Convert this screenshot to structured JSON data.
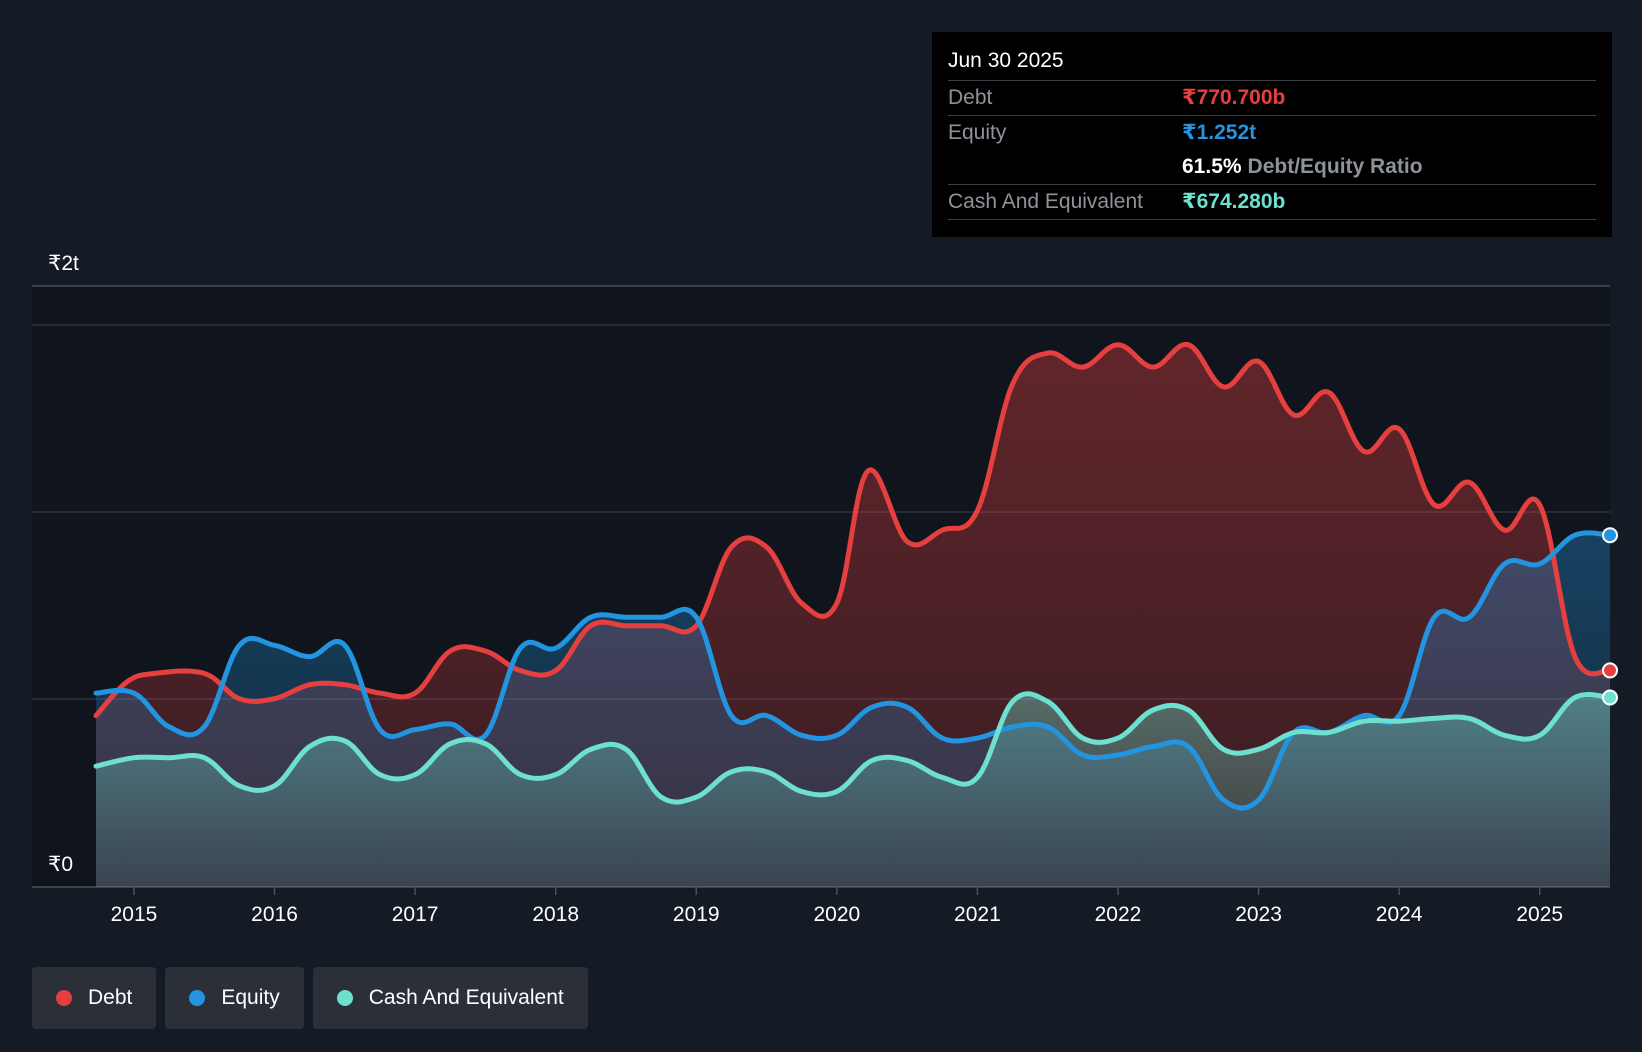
{
  "tooltip": {
    "date": "Jun 30 2025",
    "debt_label": "Debt",
    "debt_value": "₹770.700b",
    "equity_label": "Equity",
    "equity_value": "₹1.252t",
    "ratio_pct": "61.5%",
    "ratio_label": "Debt/Equity Ratio",
    "cash_label": "Cash And Equivalent",
    "cash_value": "₹674.280b"
  },
  "legend": {
    "debt": "Debt",
    "equity": "Equity",
    "cash": "Cash And Equivalent"
  },
  "colors": {
    "debt": "#e5403f",
    "equity": "#2394df",
    "cash": "#6de0cf",
    "background": "#151b24"
  },
  "chart_data": {
    "type": "area",
    "title": "",
    "xlabel": "",
    "ylabel": "",
    "y_top_label": "₹2t",
    "y_bottom_label": "₹0",
    "ylim": [
      0,
      2000
    ],
    "xlim": [
      2014.73,
      2025.5
    ],
    "x_ticks": [
      "2015",
      "2016",
      "2017",
      "2018",
      "2019",
      "2020",
      "2021",
      "2022",
      "2023",
      "2024",
      "2025"
    ],
    "units": "₹ billions",
    "series": [
      {
        "name": "Debt",
        "points": [
          [
            2014.73,
            610
          ],
          [
            2014.95,
            730
          ],
          [
            2015.15,
            760
          ],
          [
            2015.5,
            760
          ],
          [
            2015.75,
            670
          ],
          [
            2016.0,
            670
          ],
          [
            2016.25,
            720
          ],
          [
            2016.5,
            720
          ],
          [
            2016.75,
            690
          ],
          [
            2017.0,
            690
          ],
          [
            2017.25,
            840
          ],
          [
            2017.5,
            840
          ],
          [
            2017.75,
            770
          ],
          [
            2018.0,
            770
          ],
          [
            2018.25,
            930
          ],
          [
            2018.5,
            930
          ],
          [
            2018.75,
            930
          ],
          [
            2019.0,
            930
          ],
          [
            2019.25,
            1210
          ],
          [
            2019.5,
            1210
          ],
          [
            2019.75,
            1010
          ],
          [
            2020.0,
            1010
          ],
          [
            2020.22,
            1480
          ],
          [
            2020.5,
            1230
          ],
          [
            2020.75,
            1270
          ],
          [
            2021.0,
            1340
          ],
          [
            2021.25,
            1790
          ],
          [
            2021.5,
            1900
          ],
          [
            2021.75,
            1850
          ],
          [
            2022.0,
            1930
          ],
          [
            2022.25,
            1850
          ],
          [
            2022.5,
            1930
          ],
          [
            2022.75,
            1780
          ],
          [
            2023.0,
            1870
          ],
          [
            2023.25,
            1680
          ],
          [
            2023.5,
            1760
          ],
          [
            2023.75,
            1550
          ],
          [
            2024.0,
            1630
          ],
          [
            2024.25,
            1360
          ],
          [
            2024.5,
            1440
          ],
          [
            2024.75,
            1270
          ],
          [
            2025.0,
            1360
          ],
          [
            2025.25,
            820
          ],
          [
            2025.5,
            770.7
          ]
        ]
      },
      {
        "name": "Equity",
        "points": [
          [
            2014.73,
            690
          ],
          [
            2015.0,
            690
          ],
          [
            2015.25,
            570
          ],
          [
            2015.5,
            570
          ],
          [
            2015.75,
            860
          ],
          [
            2016.0,
            860
          ],
          [
            2016.25,
            820
          ],
          [
            2016.5,
            860
          ],
          [
            2016.75,
            560
          ],
          [
            2017.0,
            560
          ],
          [
            2017.25,
            580
          ],
          [
            2017.5,
            540
          ],
          [
            2017.75,
            850
          ],
          [
            2018.0,
            850
          ],
          [
            2018.25,
            960
          ],
          [
            2018.5,
            960
          ],
          [
            2018.75,
            960
          ],
          [
            2019.0,
            960
          ],
          [
            2019.25,
            610
          ],
          [
            2019.5,
            610
          ],
          [
            2019.75,
            540
          ],
          [
            2020.0,
            540
          ],
          [
            2020.25,
            640
          ],
          [
            2020.5,
            640
          ],
          [
            2020.75,
            530
          ],
          [
            2021.0,
            530
          ],
          [
            2021.25,
            570
          ],
          [
            2021.5,
            570
          ],
          [
            2021.75,
            470
          ],
          [
            2022.0,
            470
          ],
          [
            2022.25,
            500
          ],
          [
            2022.5,
            500
          ],
          [
            2022.75,
            310
          ],
          [
            2023.0,
            310
          ],
          [
            2023.25,
            550
          ],
          [
            2023.5,
            550
          ],
          [
            2023.75,
            610
          ],
          [
            2024.0,
            610
          ],
          [
            2024.25,
            960
          ],
          [
            2024.5,
            960
          ],
          [
            2024.75,
            1150
          ],
          [
            2025.0,
            1150
          ],
          [
            2025.25,
            1252
          ],
          [
            2025.5,
            1252
          ]
        ]
      },
      {
        "name": "Cash And Equivalent",
        "points": [
          [
            2014.73,
            430
          ],
          [
            2015.0,
            460
          ],
          [
            2015.25,
            460
          ],
          [
            2015.5,
            460
          ],
          [
            2015.75,
            360
          ],
          [
            2016.0,
            360
          ],
          [
            2016.25,
            500
          ],
          [
            2016.5,
            520
          ],
          [
            2016.75,
            400
          ],
          [
            2017.0,
            400
          ],
          [
            2017.25,
            510
          ],
          [
            2017.5,
            510
          ],
          [
            2017.75,
            400
          ],
          [
            2018.0,
            400
          ],
          [
            2018.25,
            490
          ],
          [
            2018.5,
            490
          ],
          [
            2018.75,
            320
          ],
          [
            2019.0,
            320
          ],
          [
            2019.25,
            410
          ],
          [
            2019.5,
            410
          ],
          [
            2019.75,
            340
          ],
          [
            2020.0,
            340
          ],
          [
            2020.25,
            450
          ],
          [
            2020.5,
            450
          ],
          [
            2020.75,
            390
          ],
          [
            2021.0,
            390
          ],
          [
            2021.25,
            660
          ],
          [
            2021.5,
            660
          ],
          [
            2021.75,
            530
          ],
          [
            2022.0,
            530
          ],
          [
            2022.25,
            630
          ],
          [
            2022.5,
            630
          ],
          [
            2022.75,
            490
          ],
          [
            2023.0,
            490
          ],
          [
            2023.25,
            550
          ],
          [
            2023.5,
            550
          ],
          [
            2023.75,
            590
          ],
          [
            2024.0,
            590
          ],
          [
            2024.25,
            600
          ],
          [
            2024.5,
            600
          ],
          [
            2024.75,
            540
          ],
          [
            2025.0,
            540
          ],
          [
            2025.25,
            674.28
          ],
          [
            2025.5,
            674.28
          ]
        ]
      }
    ]
  }
}
